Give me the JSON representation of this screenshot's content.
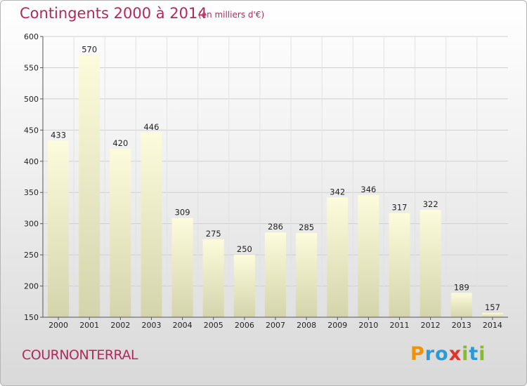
{
  "title": "Contingents 2000 à 2014",
  "unit_note": "(en milliers d'€)",
  "commune": "COURNONTERRAL",
  "logo": {
    "letters": [
      "P",
      "r",
      "o",
      "x",
      "i",
      "t",
      "i"
    ]
  },
  "colors": {
    "title": "#b02a5a",
    "bar_top": "#fcfcdc",
    "bar_bottom": "#d4d4ac"
  },
  "chart_data": {
    "type": "bar",
    "title": "Contingents 2000 à 2014",
    "subtitle": "(en milliers d'€)",
    "xlabel": "",
    "ylabel": "",
    "categories": [
      "2000",
      "2001",
      "2002",
      "2003",
      "2004",
      "2005",
      "2006",
      "2007",
      "2008",
      "2009",
      "2010",
      "2011",
      "2012",
      "2013",
      "2014"
    ],
    "values": [
      433,
      570,
      420,
      446,
      309,
      275,
      250,
      286,
      285,
      342,
      346,
      317,
      322,
      189,
      157
    ],
    "ylim": [
      150,
      600
    ],
    "yticks": [
      150,
      200,
      250,
      300,
      350,
      400,
      450,
      500,
      550,
      600
    ],
    "grid": true,
    "legend": "none"
  }
}
